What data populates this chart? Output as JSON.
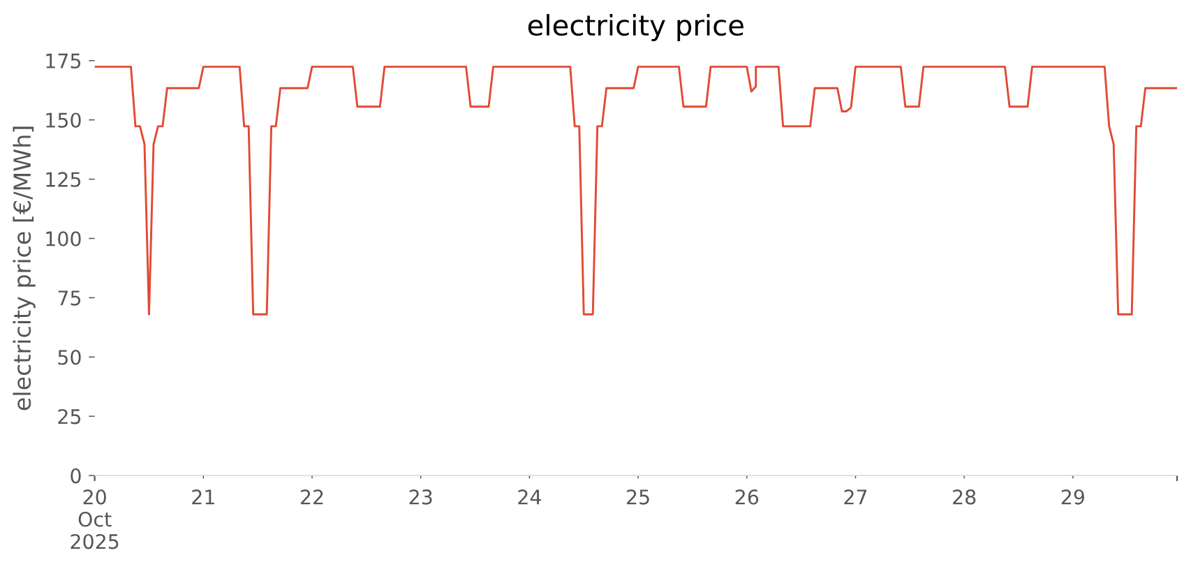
{
  "chart_data": {
    "type": "line",
    "title": "electricity price",
    "ylabel": "electricity price [€/MWh]",
    "x": [
      "2025-10-20T00:00",
      "2025-10-20T08:00",
      "2025-10-20T09:00",
      "2025-10-20T10:00",
      "2025-10-20T11:00",
      "2025-10-20T12:00",
      "2025-10-20T13:00",
      "2025-10-20T14:00",
      "2025-10-20T15:00",
      "2025-10-20T16:00",
      "2025-10-20T23:00",
      "2025-10-21T00:00",
      "2025-10-21T08:00",
      "2025-10-21T09:00",
      "2025-10-21T10:00",
      "2025-10-21T11:00",
      "2025-10-21T14:00",
      "2025-10-21T15:00",
      "2025-10-21T16:00",
      "2025-10-21T17:00",
      "2025-10-21T23:00",
      "2025-10-22T00:00",
      "2025-10-22T09:00",
      "2025-10-22T10:00",
      "2025-10-22T15:00",
      "2025-10-22T16:00",
      "2025-10-23T10:00",
      "2025-10-23T11:00",
      "2025-10-23T15:00",
      "2025-10-23T16:00",
      "2025-10-24T09:00",
      "2025-10-24T10:00",
      "2025-10-24T11:00",
      "2025-10-24T12:00",
      "2025-10-24T14:00",
      "2025-10-24T15:00",
      "2025-10-24T16:00",
      "2025-10-24T17:00",
      "2025-10-24T23:00",
      "2025-10-25T00:00",
      "2025-10-25T09:00",
      "2025-10-25T10:00",
      "2025-10-25T15:00",
      "2025-10-25T16:00",
      "2025-10-26T00:00",
      "2025-10-26T01:00",
      "2025-10-26T02:00",
      "2025-10-26T02:00",
      "2025-10-26T07:00",
      "2025-10-26T08:00",
      "2025-10-26T14:00",
      "2025-10-26T15:00",
      "2025-10-26T20:00",
      "2025-10-26T21:00",
      "2025-10-26T22:00",
      "2025-10-26T23:00",
      "2025-10-27T00:00",
      "2025-10-27T10:00",
      "2025-10-27T11:00",
      "2025-10-27T14:00",
      "2025-10-27T15:00",
      "2025-10-28T09:00",
      "2025-10-28T10:00",
      "2025-10-28T14:00",
      "2025-10-28T15:00",
      "2025-10-29T07:00",
      "2025-10-29T08:00",
      "2025-10-29T09:00",
      "2025-10-29T10:00",
      "2025-10-29T13:00",
      "2025-10-29T14:00",
      "2025-10-29T15:00",
      "2025-10-29T16:00",
      "2025-10-29T23:00"
    ],
    "series": [
      {
        "color": "#e24a33",
        "values": [
          172.4,
          172.4,
          147.3,
          147.3,
          139.7,
          68.0,
          139.7,
          147.3,
          147.3,
          163.4,
          163.4,
          172.4,
          172.4,
          147.3,
          147.3,
          68.0,
          68.0,
          147.3,
          147.3,
          163.4,
          163.4,
          172.4,
          172.4,
          155.6,
          155.6,
          172.4,
          172.4,
          155.6,
          155.6,
          172.4,
          172.4,
          147.3,
          147.3,
          68.0,
          68.0,
          147.3,
          147.3,
          163.4,
          163.4,
          172.4,
          172.4,
          155.6,
          155.6,
          172.4,
          172.4,
          162.0,
          164.1,
          172.4,
          172.4,
          147.3,
          147.3,
          163.4,
          163.4,
          153.6,
          153.6,
          155.2,
          172.4,
          172.4,
          155.6,
          155.6,
          172.4,
          172.4,
          155.6,
          155.6,
          172.4,
          172.4,
          147.3,
          139.7,
          68.0,
          68.0,
          147.3,
          147.3,
          163.4,
          163.4
        ]
      }
    ],
    "line_style": "solid",
    "xlim": [
      "2025-10-20T00:00",
      "2025-10-29T23:00"
    ],
    "xticks": [
      {
        "value": "2025-10-20T00:00",
        "label": "20\nOct\n2025"
      },
      {
        "value": "2025-10-21T00:00",
        "label": "21"
      },
      {
        "value": "2025-10-22T00:00",
        "label": "22"
      },
      {
        "value": "2025-10-23T00:00",
        "label": "23"
      },
      {
        "value": "2025-10-24T00:00",
        "label": "24"
      },
      {
        "value": "2025-10-25T00:00",
        "label": "25"
      },
      {
        "value": "2025-10-26T00:00",
        "label": "26"
      },
      {
        "value": "2025-10-27T00:00",
        "label": "27"
      },
      {
        "value": "2025-10-28T00:00",
        "label": "28"
      },
      {
        "value": "2025-10-29T00:00",
        "label": "29"
      },
      {
        "value": "2025-10-29T23:00",
        "label": null
      }
    ],
    "ylim": [
      0,
      175
    ],
    "yticks": [
      0,
      25,
      50,
      75,
      100,
      125,
      150,
      175
    ]
  }
}
